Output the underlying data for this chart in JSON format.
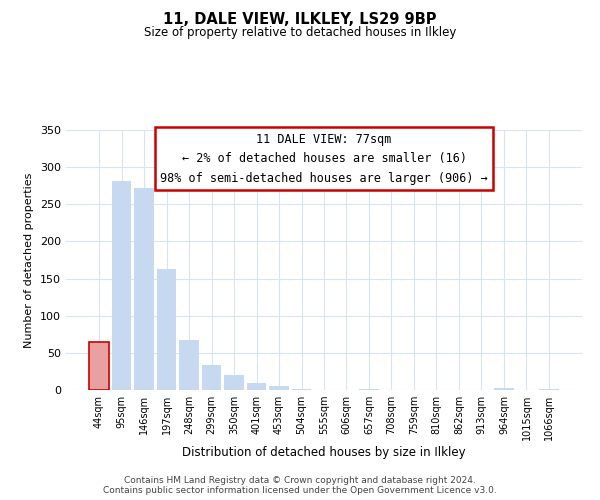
{
  "title": "11, DALE VIEW, ILKLEY, LS29 9BP",
  "subtitle": "Size of property relative to detached houses in Ilkley",
  "xlabel": "Distribution of detached houses by size in Ilkley",
  "ylabel": "Number of detached properties",
  "footer_line1": "Contains HM Land Registry data © Crown copyright and database right 2024.",
  "footer_line2": "Contains public sector information licensed under the Open Government Licence v3.0.",
  "bar_labels": [
    "44sqm",
    "95sqm",
    "146sqm",
    "197sqm",
    "248sqm",
    "299sqm",
    "350sqm",
    "401sqm",
    "453sqm",
    "504sqm",
    "555sqm",
    "606sqm",
    "657sqm",
    "708sqm",
    "759sqm",
    "810sqm",
    "862sqm",
    "913sqm",
    "964sqm",
    "1015sqm",
    "1066sqm"
  ],
  "bar_values": [
    65,
    282,
    272,
    163,
    67,
    34,
    20,
    10,
    5,
    2,
    0,
    0,
    1,
    0,
    0,
    0,
    0,
    0,
    3,
    0,
    2
  ],
  "bar_color_normal": "#c6d9f0",
  "bar_color_highlight": "#e8a0a0",
  "highlight_index": 0,
  "property_size": "77sqm",
  "property_name": "11 DALE VIEW",
  "pct_smaller": 2,
  "count_smaller": 16,
  "pct_larger_semi": 98,
  "count_larger_semi": 906,
  "annotation_box_color": "#ffffff",
  "annotation_box_edge": "#cc0000",
  "ylim": [
    0,
    350
  ],
  "yticks": [
    0,
    50,
    100,
    150,
    200,
    250,
    300,
    350
  ],
  "bg_color": "#ffffff",
  "grid_color": "#d8e4f0"
}
